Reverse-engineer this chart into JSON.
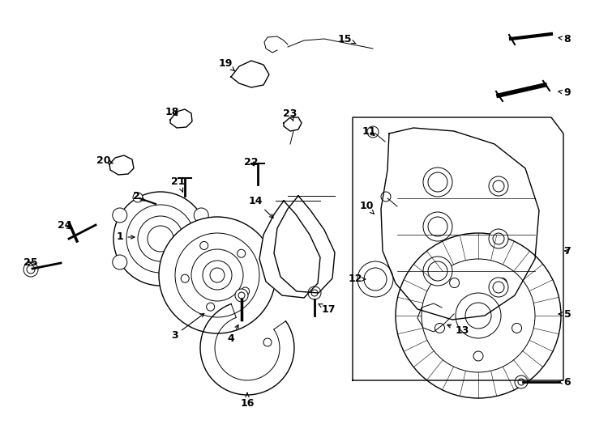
{
  "bg_color": "#ffffff",
  "line_color": "#000000",
  "fig_w": 7.34,
  "fig_h": 5.4,
  "dpi": 100
}
